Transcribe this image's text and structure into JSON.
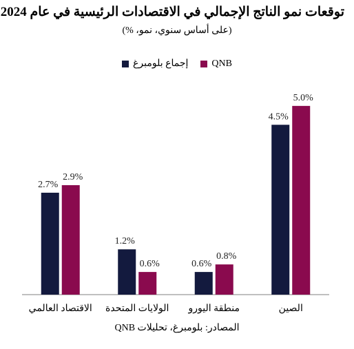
{
  "chart_data": {
    "type": "bar",
    "title": "توقعات نمو الناتج الإجمالي في الاقتصادات الرئيسية في عام 2024",
    "subtitle": "(على أساس سنوي، نمو، %)",
    "categories": [
      "الاقتصاد العالمي",
      "الولايات المتحدة",
      "منطقة اليورو",
      "الصين"
    ],
    "series": [
      {
        "name": "إجماع بلومبرغ",
        "values": [
          2.7,
          1.2,
          0.6,
          4.5
        ],
        "labels": [
          "2.7%",
          "1.2%",
          "0.6%",
          "4.5%"
        ],
        "color": "#131a3e"
      },
      {
        "name": "QNB",
        "values": [
          2.9,
          0.6,
          0.8,
          5.0
        ],
        "labels": [
          "2.9%",
          "0.6%",
          "0.8%",
          "5.0%"
        ],
        "color": "#8a0a4e"
      }
    ],
    "ylim": [
      0,
      5.8
    ],
    "grid": false,
    "legend_position": "top-center",
    "source": "المصادر: بلومبرغ، تحليلات QNB"
  }
}
